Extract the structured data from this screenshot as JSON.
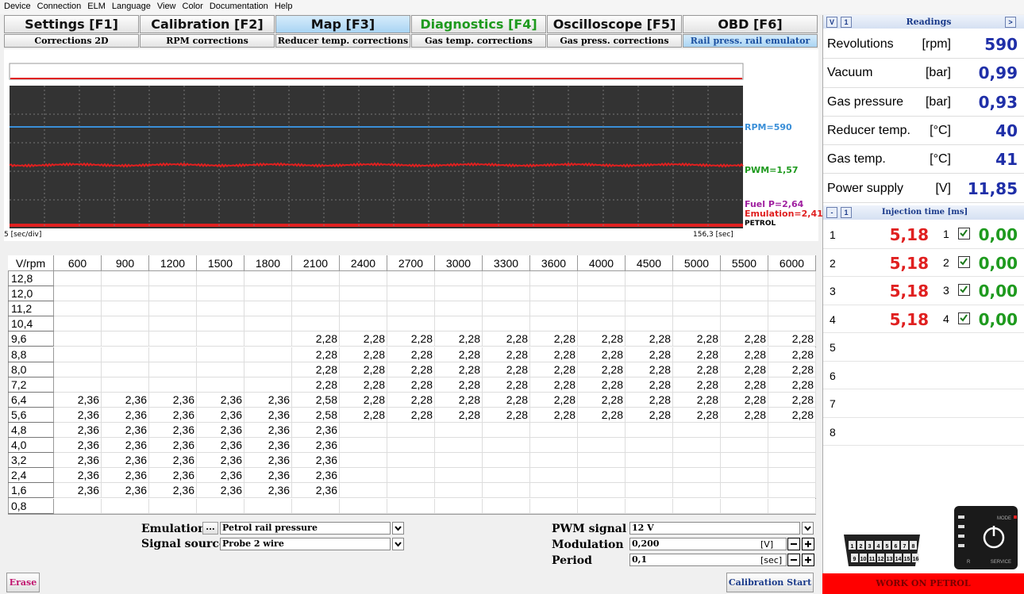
{
  "menu": [
    "Device",
    "Connection",
    "ELM",
    "Language",
    "View",
    "Color",
    "Documentation",
    "Help"
  ],
  "tabs": [
    "Settings [F1]",
    "Calibration [F2]",
    "Map [F3]",
    "Diagnostics [F4]",
    "Oscilloscope [F5]",
    "OBD [F6]"
  ],
  "subtabs": [
    "Corrections 2D",
    "RPM corrections",
    "Reducer temp. corrections",
    "Gas temp. corrections",
    "Gas press. corrections",
    "Rail press. rail emulator"
  ],
  "scope": {
    "labels": [
      "RPM=590",
      "PWM=1,57",
      "Fuel P=2,64",
      "Emulation=2,41",
      "PETROL"
    ],
    "time_div": "5 [sec/div]",
    "time": "156,3 [sec]"
  },
  "table": {
    "corner": "V/rpm",
    "columns": [
      "600",
      "900",
      "1200",
      "1500",
      "1800",
      "2100",
      "2400",
      "2700",
      "3000",
      "3300",
      "3600",
      "4000",
      "4500",
      "5000",
      "5500",
      "6000"
    ],
    "rows": [
      {
        "label": "12,8",
        "cells": [
          null,
          null,
          null,
          null,
          null,
          null,
          null,
          null,
          null,
          null,
          null,
          null,
          null,
          null,
          null,
          null
        ]
      },
      {
        "label": "12,0",
        "cells": [
          null,
          null,
          null,
          null,
          null,
          null,
          null,
          null,
          null,
          null,
          null,
          null,
          null,
          null,
          null,
          null
        ]
      },
      {
        "label": "11,2",
        "cells": [
          null,
          null,
          null,
          null,
          null,
          null,
          null,
          null,
          null,
          null,
          null,
          null,
          null,
          null,
          null,
          null
        ]
      },
      {
        "label": "10,4",
        "cells": [
          null,
          null,
          null,
          null,
          null,
          null,
          null,
          null,
          null,
          null,
          null,
          null,
          null,
          null,
          null,
          null
        ]
      },
      {
        "label": "9,6",
        "cells": [
          null,
          null,
          null,
          null,
          null,
          "2,28",
          "2,28",
          "2,28",
          "2,28",
          "2,28",
          "2,28",
          "2,28",
          "2,28",
          "2,28",
          "2,28",
          "2,28"
        ]
      },
      {
        "label": "8,8",
        "cells": [
          null,
          null,
          null,
          null,
          null,
          "2,28",
          "2,28",
          "2,28",
          "2,28",
          "2,28",
          "2,28",
          "2,28",
          "2,28",
          "2,28",
          "2,28",
          "2,28"
        ]
      },
      {
        "label": "8,0",
        "cells": [
          null,
          null,
          null,
          null,
          null,
          "2,28",
          "2,28",
          "2,28",
          "2,28",
          "2,28",
          "2,28",
          "2,28",
          "2,28",
          "2,28",
          "2,28",
          "2,28"
        ]
      },
      {
        "label": "7,2",
        "cells": [
          null,
          null,
          null,
          null,
          null,
          "2,28",
          "2,28",
          "2,28",
          "2,28",
          "2,28",
          "2,28",
          "2,28",
          "2,28",
          "2,28",
          "2,28",
          "2,28"
        ]
      },
      {
        "label": "6,4",
        "cells": [
          "2,36",
          "2,36",
          "2,36",
          "2,36",
          "2,36",
          "2,58",
          "2,28",
          "2,28",
          "2,28",
          "2,28",
          "2,28",
          "2,28",
          "2,28",
          "2,28",
          "2,28",
          "2,28"
        ]
      },
      {
        "label": "5,6",
        "cells": [
          "2,36",
          "2,36",
          "2,36",
          "2,36",
          "2,36",
          "2,58",
          "2,28",
          "2,28",
          "2,28",
          "2,28",
          "2,28",
          "2,28",
          "2,28",
          "2,28",
          "2,28",
          "2,28"
        ]
      },
      {
        "label": "4,8",
        "cells": [
          "2,36",
          "2,36",
          "2,36",
          "2,36",
          "2,36",
          "2,36",
          null,
          null,
          null,
          null,
          null,
          null,
          null,
          null,
          null,
          null
        ]
      },
      {
        "label": "4,0",
        "cells": [
          "2,36",
          "2,36",
          "2,36",
          "2,36",
          "2,36",
          "2,36",
          null,
          null,
          null,
          null,
          null,
          null,
          null,
          null,
          null,
          null
        ]
      },
      {
        "label": "3,2",
        "cells": [
          "2,36",
          "2,36",
          "2,36",
          "2,36",
          "2,36",
          "2,36",
          null,
          null,
          null,
          null,
          null,
          null,
          null,
          null,
          null,
          null
        ]
      },
      {
        "label": "2,4",
        "cells": [
          "2,36",
          "2,36",
          "2,36",
          "2,36",
          "2,36",
          "2,36",
          null,
          null,
          null,
          null,
          null,
          null,
          null,
          null,
          null,
          null
        ]
      },
      {
        "label": "1,6",
        "cells": [
          "2,36",
          "2,36",
          "2,36",
          "2,36",
          "2,36",
          "2,36",
          null,
          null,
          null,
          null,
          null,
          null,
          null,
          null,
          null,
          null
        ]
      },
      {
        "label": "0,8",
        "cells": [
          null,
          null,
          null,
          null,
          null,
          null,
          null,
          null,
          null,
          null,
          null,
          null,
          null,
          null,
          null,
          null
        ]
      }
    ]
  },
  "controls": {
    "emulation_label": "Emulation",
    "emulation_button": "...",
    "emulation_value": "Petrol rail pressure",
    "signal_source_label": "Signal source",
    "signal_source_value": "Probe 2 wire",
    "pwm_label": "PWM signal",
    "pwm_value": "12 V",
    "modulation_label": "Modulation",
    "modulation_value": "0,200",
    "modulation_unit": "[V]",
    "period_label": "Period",
    "period_value": "0,1",
    "period_unit": "[sec]",
    "erase": "Erase",
    "calibration_start": "Calibration Start"
  },
  "readings": {
    "buttons": [
      "V",
      "1"
    ],
    "title": "Readings",
    "expand": ">",
    "items": [
      {
        "name": "Revolutions",
        "unit": "[rpm]",
        "value": "590"
      },
      {
        "name": "Vacuum",
        "unit": "[bar]",
        "value": "0,99"
      },
      {
        "name": "Gas pressure",
        "unit": "[bar]",
        "value": "0,93"
      },
      {
        "name": "Reducer temp.",
        "unit": "[°C]",
        "value": "40"
      },
      {
        "name": "Gas temp.",
        "unit": "[°C]",
        "value": "41"
      },
      {
        "name": "Power supply",
        "unit": "[V]",
        "value": "11,85"
      }
    ]
  },
  "injection": {
    "buttons": [
      "-",
      "1"
    ],
    "title": "Injection time [ms]",
    "rows": [
      {
        "index": "1",
        "petrol": "5,18",
        "channel": "1",
        "gas": "0,00"
      },
      {
        "index": "2",
        "petrol": "5,18",
        "channel": "2",
        "gas": "0,00"
      },
      {
        "index": "3",
        "petrol": "5,18",
        "channel": "3",
        "gas": "0,00"
      },
      {
        "index": "4",
        "petrol": "5,18",
        "channel": "4",
        "gas": "0,00"
      },
      {
        "index": "5"
      },
      {
        "index": "6"
      },
      {
        "index": "7"
      },
      {
        "index": "8"
      }
    ]
  },
  "obd": {
    "pins": [
      "1",
      "2",
      "3",
      "4",
      "5",
      "6",
      "7",
      "8",
      "9",
      "10",
      "11",
      "12",
      "13",
      "14",
      "15",
      "16"
    ],
    "mode": "MODE",
    "service": "SERVICE",
    "r": "R"
  },
  "status": "WORK ON PETROL"
}
